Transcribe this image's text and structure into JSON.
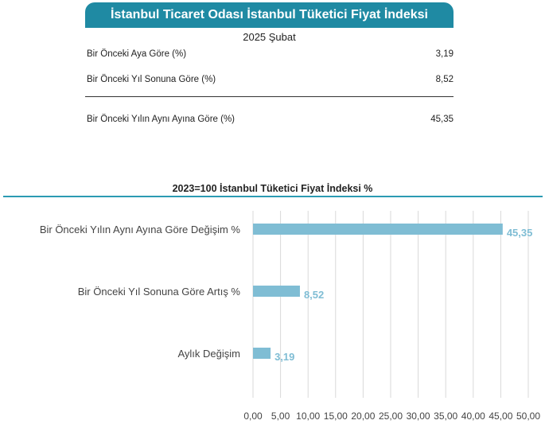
{
  "header": {
    "title": "İstanbul Ticaret Odası İstanbul Tüketici Fiyat İndeksi",
    "period": "2025 Şubat"
  },
  "table": {
    "rows": [
      {
        "label": "Bir Önceki Aya Göre (%)",
        "value": "3,19"
      },
      {
        "label": "Bir Önceki Yıl Sonuna Göre (%)",
        "value": "8,52"
      },
      {
        "label": "Bir Önceki Yılın Aynı Ayına Göre (%)",
        "value": "45,35"
      }
    ]
  },
  "colors": {
    "accent": "#1f8aa3",
    "bar": "#7fbdd4",
    "grid": "#d9d9d9"
  },
  "chart_data": {
    "type": "bar",
    "orientation": "horizontal",
    "title": "2023=100 İstanbul Tüketici Fiyat İndeksi %",
    "categories": [
      "Bir Önceki Yılın Aynı Ayına Göre Değişim %",
      "Bir Önceki Yıl Sonuna Göre Artış %",
      "Aylık Değişim"
    ],
    "values": [
      45.35,
      8.52,
      3.19
    ],
    "value_labels": [
      "45,35",
      "8,52",
      "3,19"
    ],
    "xlim": [
      0,
      50
    ],
    "ticks": [
      "0,00",
      "5,00",
      "10,00",
      "15,00",
      "20,00",
      "25,00",
      "30,00",
      "35,00",
      "40,00",
      "45,00",
      "50,00"
    ],
    "grid": true,
    "legend": "none"
  }
}
